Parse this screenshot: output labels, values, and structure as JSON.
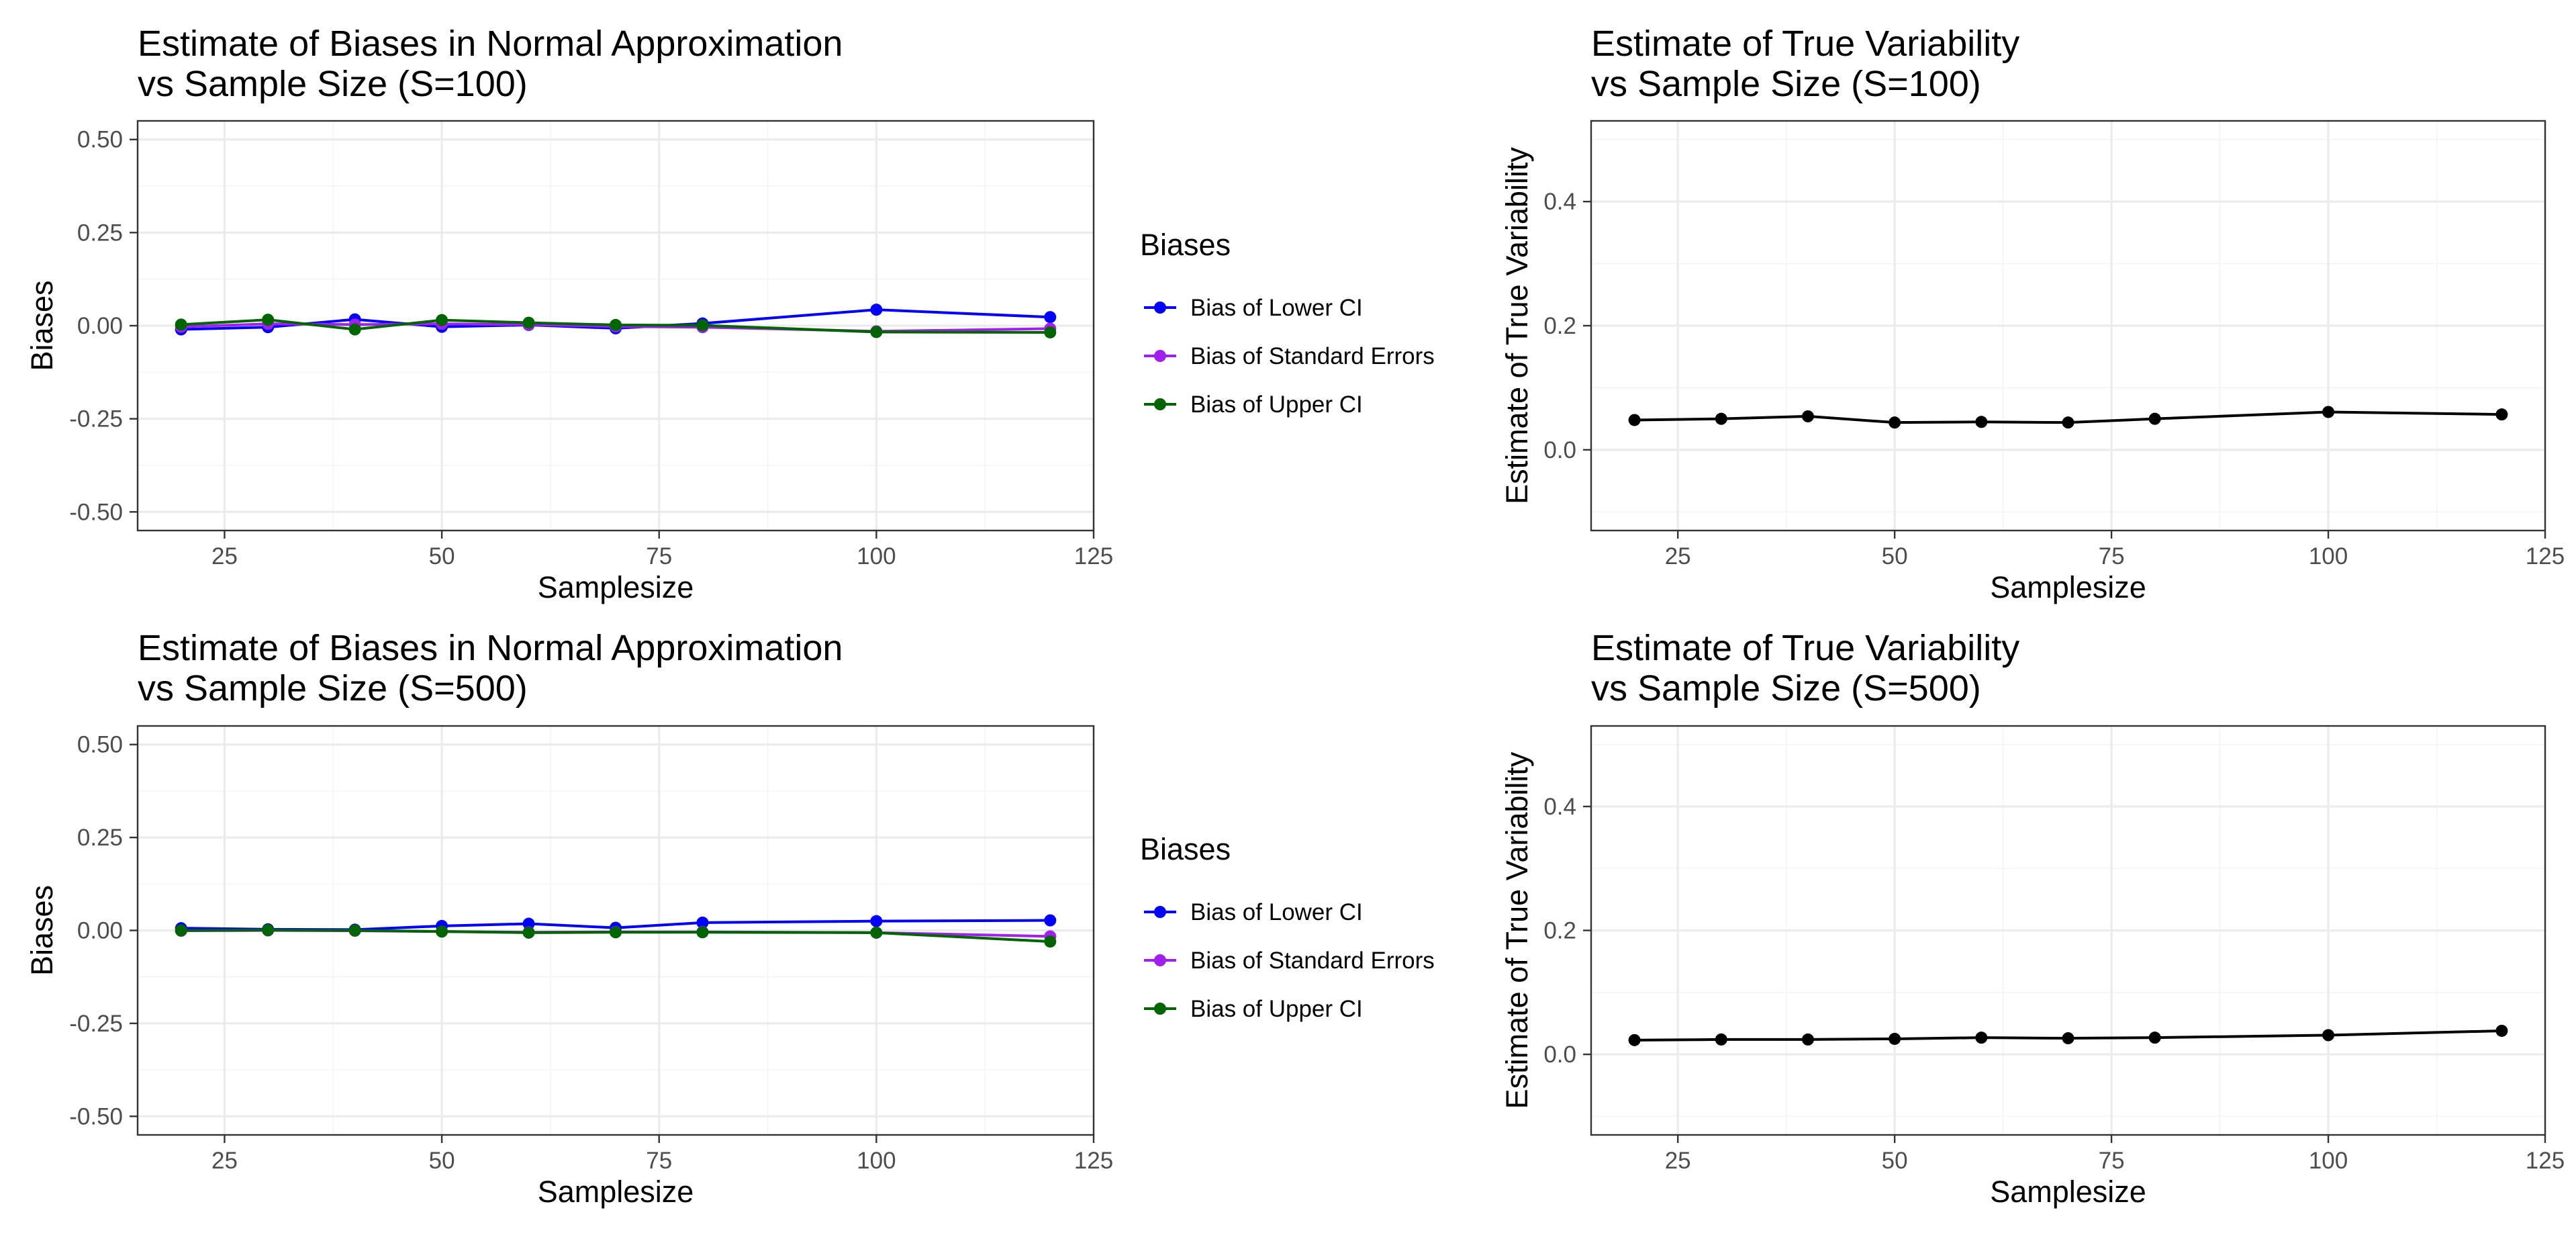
{
  "chart_data": [
    {
      "type": "line",
      "title": [
        "Estimate of Biases in Normal Approximation",
        "vs Sample Size (S=100)"
      ],
      "xlabel": "Samplesize",
      "ylabel": "Biases",
      "xlim": [
        15,
        125
      ],
      "ylim": [
        -0.55,
        0.55
      ],
      "xticks": [
        25,
        50,
        75,
        100,
        125
      ],
      "yticks": [
        0.5,
        0.25,
        0.0,
        -0.25,
        -0.5
      ],
      "xtick_labels": [
        "25",
        "50",
        "75",
        "100",
        "125"
      ],
      "ytick_labels": [
        "0.50",
        "0.25",
        "0.00",
        "-0.25",
        "-0.50"
      ],
      "grid": true,
      "x": [
        20,
        30,
        40,
        50,
        60,
        70,
        80,
        100,
        120
      ],
      "legend": {
        "title": "Biases",
        "placement": "right"
      },
      "series": [
        {
          "name": "Bias of Lower CI",
          "color": "#0000ff",
          "values": [
            -0.01,
            -0.004,
            0.017,
            -0.003,
            0.002,
            -0.007,
            0.006,
            0.043,
            0.023
          ]
        },
        {
          "name": "Bias of Standard Errors",
          "color": "#a020f0",
          "values": [
            -0.003,
            0.005,
            0.003,
            0.005,
            0.003,
            -0.002,
            -0.004,
            -0.015,
            -0.008
          ]
        },
        {
          "name": "Bias of Upper CI",
          "color": "#006400",
          "values": [
            0.003,
            0.016,
            -0.01,
            0.015,
            0.008,
            0.002,
            0.001,
            -0.017,
            -0.018
          ]
        }
      ]
    },
    {
      "type": "line",
      "title": [
        "Estimate of True Variability",
        "vs Sample Size (S=100)"
      ],
      "xlabel": "Samplesize",
      "ylabel": "Estimate of True Variability",
      "xlim": [
        15,
        125
      ],
      "ylim": [
        -0.13,
        0.53
      ],
      "xticks": [
        25,
        50,
        75,
        100,
        125
      ],
      "yticks": [
        0.4,
        0.2,
        0.0
      ],
      "xtick_labels": [
        "25",
        "50",
        "75",
        "100",
        "125"
      ],
      "ytick_labels": [
        "0.4",
        "0.2",
        "0.0"
      ],
      "grid": true,
      "x": [
        20,
        30,
        40,
        50,
        60,
        70,
        80,
        100,
        120
      ],
      "series": [
        {
          "color": "#000000",
          "values": [
            0.048,
            0.05,
            0.054,
            0.044,
            0.045,
            0.044,
            0.05,
            0.061,
            0.057
          ]
        }
      ]
    },
    {
      "type": "line",
      "title": [
        "Estimate of Biases in Normal Approximation",
        "vs Sample Size (S=500)"
      ],
      "xlabel": "Samplesize",
      "ylabel": "Biases",
      "xlim": [
        15,
        125
      ],
      "ylim": [
        -0.55,
        0.55
      ],
      "xticks": [
        25,
        50,
        75,
        100,
        125
      ],
      "yticks": [
        0.5,
        0.25,
        0.0,
        -0.25,
        -0.5
      ],
      "xtick_labels": [
        "25",
        "50",
        "75",
        "100",
        "125"
      ],
      "ytick_labels": [
        "0.50",
        "0.25",
        "0.00",
        "-0.25",
        "-0.50"
      ],
      "grid": true,
      "x": [
        20,
        30,
        40,
        50,
        60,
        70,
        80,
        100,
        120
      ],
      "legend": {
        "title": "Biases",
        "placement": "right"
      },
      "series": [
        {
          "name": "Bias of Lower CI",
          "color": "#0000ff",
          "values": [
            0.006,
            0.003,
            0.002,
            0.012,
            0.018,
            0.007,
            0.021,
            0.025,
            0.027
          ]
        },
        {
          "name": "Bias of Standard Errors",
          "color": "#a020f0",
          "values": [
            -0.001,
            0.0,
            -0.001,
            -0.003,
            -0.005,
            -0.004,
            -0.004,
            -0.006,
            -0.016
          ]
        },
        {
          "name": "Bias of Upper CI",
          "color": "#006400",
          "values": [
            0.0,
            0.001,
            0.0,
            -0.003,
            -0.006,
            -0.005,
            -0.005,
            -0.006,
            -0.03
          ]
        }
      ]
    },
    {
      "type": "line",
      "title": [
        "Estimate of True Variability",
        "vs Sample Size (S=500)"
      ],
      "xlabel": "Samplesize",
      "ylabel": "Estimate of True Variability",
      "xlim": [
        15,
        125
      ],
      "ylim": [
        -0.13,
        0.53
      ],
      "xticks": [
        25,
        50,
        75,
        100,
        125
      ],
      "yticks": [
        0.4,
        0.2,
        0.0
      ],
      "xtick_labels": [
        "25",
        "50",
        "75",
        "100",
        "125"
      ],
      "ytick_labels": [
        "0.4",
        "0.2",
        "0.0"
      ],
      "grid": true,
      "x": [
        20,
        30,
        40,
        50,
        60,
        70,
        80,
        100,
        120
      ],
      "series": [
        {
          "color": "#000000",
          "values": [
            0.023,
            0.024,
            0.024,
            0.025,
            0.027,
            0.026,
            0.027,
            0.031,
            0.038
          ]
        }
      ]
    }
  ]
}
